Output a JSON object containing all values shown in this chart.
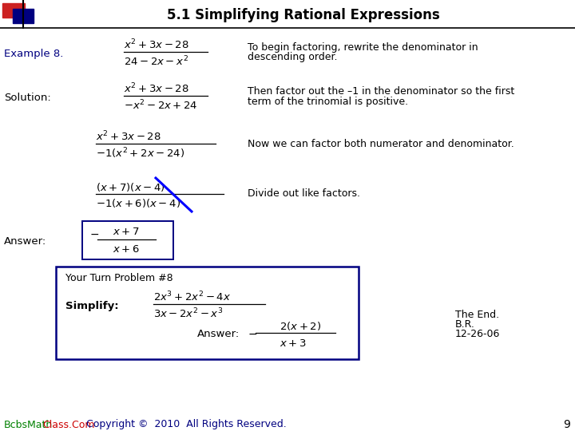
{
  "title": "5.1 Simplifying Rational Expressions",
  "bg_color": "#FFFFFF",
  "title_color": "#000000",
  "example_label": "Example 8.",
  "example_color": "#000080",
  "solution_label": "Solution:",
  "answer_label": "Answer:",
  "example_frac_num": "$x^2 + 3x - 28$",
  "example_frac_den": "$24 - 2x - x^2$",
  "example_note1": "To begin factoring, rewrite the denominator in",
  "example_note2": "descending order.",
  "sol_frac1_num": "$x^2 + 3x - 28$",
  "sol_frac1_den": "$-x^2 - 2x + 24$",
  "sol_note1_l1": "Then factor out the –1 in the denominator so the first",
  "sol_note1_l2": "term of the trinomial is positive.",
  "sol_frac2_num": "$x^2 + 3x - 28$",
  "sol_frac2_den": "$-1(x^2 + 2x - 24)$",
  "sol_note2": "Now we can factor both numerator and denominator.",
  "sol_frac3_num": "$(x + 7)(x - 4)$",
  "sol_frac3_den": "$-1(x + 6)(x - 4)$",
  "sol_note3": "Divide out like factors.",
  "ans_frac_num": "$x + 7$",
  "ans_frac_den": "$x + 6$",
  "ans_negative": "$-$",
  "ytp_title": "Your Turn Problem #8",
  "ytp_simplify": "Simplify:",
  "ytp_frac_num": "$2x^3 + 2x^2 - 4x$",
  "ytp_frac_den": "$3x - 2x^2 - x^3$",
  "ytp_ans_label": "Answer:",
  "ytp_ans_neg": "$-$",
  "ytp_ans_num": "$2(x + 2)$",
  "ytp_ans_den": "$x + 3$",
  "end_line1": "The End.",
  "end_line2": "B.R.",
  "end_line3": "12-26-06",
  "footer_green": "BcbsMath",
  "footer_red": "Class.Com",
  "footer_rest": "  Copyright ©  2010  All Rights Reserved.",
  "footer_color_green": "#008000",
  "footer_color_red": "#CC0000",
  "footer_color_rest": "#000080",
  "page_num": "9",
  "strike_color": "#0000FF",
  "navy": "#000080"
}
